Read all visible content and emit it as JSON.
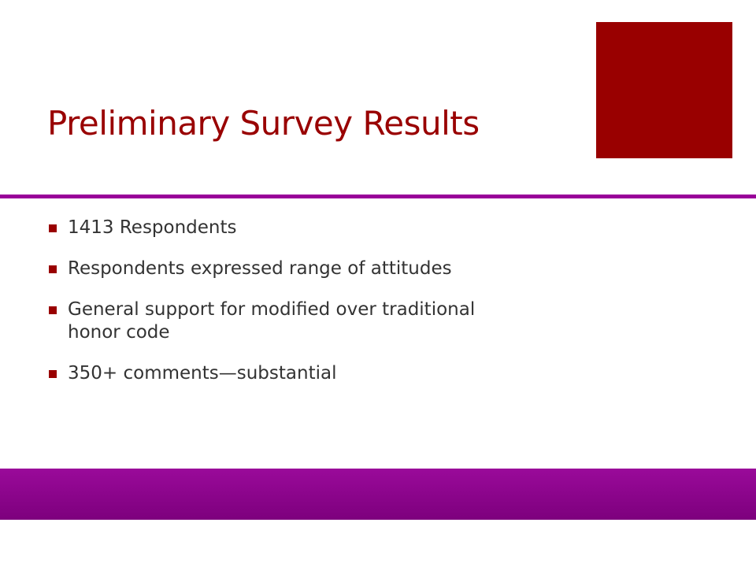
{
  "title": "Preliminary Survey Results",
  "bullets": [
    "1413 Respondents",
    "Respondents expressed range of attitudes",
    "General support for modified over traditional honor code",
    "350+ comments—substantial"
  ]
}
